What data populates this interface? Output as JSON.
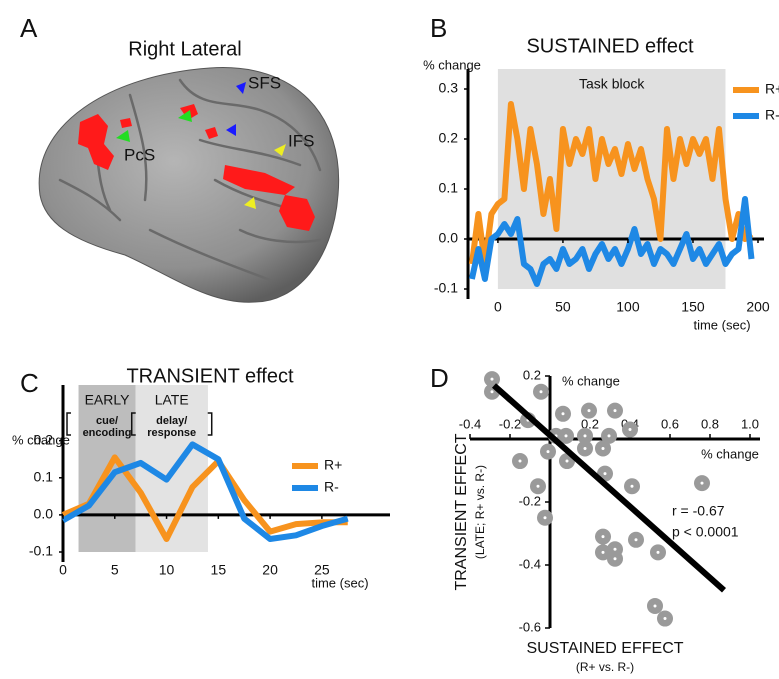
{
  "panel_a": {
    "panel": "A",
    "title": "Right Lateral",
    "labels": [
      "SFS",
      "IFS",
      "PcS"
    ]
  },
  "chart_data": [
    {
      "type": "line",
      "panel": "B",
      "title": "SUSTAINED effect",
      "y_label": "% change",
      "x_label": "time (sec)",
      "x": [
        -20,
        -15,
        -10,
        -5,
        0,
        5,
        10,
        15,
        20,
        25,
        30,
        35,
        40,
        45,
        50,
        55,
        60,
        65,
        70,
        75,
        80,
        85,
        90,
        95,
        100,
        105,
        110,
        115,
        120,
        125,
        130,
        135,
        140,
        145,
        150,
        155,
        160,
        165,
        170,
        175,
        180,
        185,
        190,
        195
      ],
      "series": [
        {
          "name": "R+",
          "color": "#f7931e",
          "values": [
            -0.05,
            0.05,
            -0.05,
            0.05,
            0.07,
            0.08,
            0.27,
            0.2,
            0.1,
            0.22,
            0.15,
            0.05,
            0.12,
            0.02,
            0.22,
            0.15,
            0.2,
            0.17,
            0.22,
            0.12,
            0.2,
            0.15,
            0.18,
            0.13,
            0.19,
            0.14,
            0.18,
            0.12,
            0.08,
            0.0,
            0.22,
            0.12,
            0.2,
            0.15,
            0.2,
            0.17,
            0.2,
            0.12,
            0.22,
            0.08,
            0.0,
            0.05,
            0.0,
            0.01
          ]
        },
        {
          "name": "R-",
          "color": "#1e88e5",
          "values": [
            -0.08,
            -0.02,
            -0.08,
            0.0,
            0.01,
            0.03,
            0.01,
            0.04,
            -0.05,
            -0.06,
            -0.09,
            -0.05,
            -0.04,
            -0.06,
            -0.02,
            -0.05,
            -0.04,
            -0.02,
            -0.06,
            -0.03,
            -0.01,
            -0.04,
            -0.02,
            -0.05,
            -0.02,
            0.02,
            -0.03,
            -0.01,
            -0.05,
            -0.02,
            -0.03,
            -0.05,
            -0.02,
            0.01,
            -0.04,
            -0.02,
            -0.05,
            -0.03,
            -0.01,
            -0.05,
            -0.03,
            -0.02,
            0.08,
            -0.04
          ]
        }
      ],
      "regions": [
        {
          "label": "Task block",
          "range": [
            0,
            175
          ],
          "color": "#e0e0e0"
        }
      ],
      "xlim": [
        -23,
        200
      ],
      "xticks": [
        0,
        50,
        100,
        150,
        200
      ],
      "ylim": [
        -0.1,
        0.34
      ],
      "yticks": [
        -0.1,
        {
          "value": 0,
          "label": "0.0"
        },
        0.1,
        0.2,
        0.3
      ],
      "legend": "right"
    },
    {
      "type": "line",
      "panel": "C",
      "title": "TRANSIENT effect",
      "y_label": "% change",
      "x_label": "time (sec)",
      "x": [
        0,
        2.5,
        5,
        7.5,
        10,
        12.5,
        15,
        17.5,
        20,
        22.5,
        25,
        27.5
      ],
      "series": [
        {
          "name": "R+",
          "color": "#f7931e",
          "values": [
            0.0,
            0.03,
            0.155,
            0.06,
            -0.065,
            0.075,
            0.145,
            0.04,
            -0.045,
            -0.025,
            -0.02,
            -0.02
          ]
        },
        {
          "name": "R-",
          "color": "#1e88e5",
          "values": [
            -0.015,
            0.025,
            0.115,
            0.14,
            0.095,
            0.19,
            0.15,
            -0.01,
            -0.065,
            -0.055,
            -0.03,
            -0.01
          ]
        }
      ],
      "regions": [
        {
          "label": "EARLY",
          "sublabel": [
            "cue/",
            "encoding"
          ],
          "range": [
            1.5,
            7
          ],
          "color": "#bdbdbd"
        },
        {
          "label": "LATE",
          "sublabel": [
            "delay/",
            "response"
          ],
          "range": [
            7,
            14
          ],
          "color": "#e3e3e3"
        }
      ],
      "xlim": [
        0,
        31
      ],
      "xticks": [
        0,
        5,
        10,
        15,
        20,
        25
      ],
      "ylim": [
        -0.1,
        0.35
      ],
      "yticks": [
        -0.1,
        {
          "value": 0,
          "label": "0.0"
        },
        0.1,
        0.2
      ],
      "legend": "center"
    },
    {
      "type": "scatter",
      "panel": "D",
      "color": "#9a9a9a",
      "y_label": "TRANSIENT EFFECT",
      "y_sublabel": "(LATE; R+ vs. R-)",
      "x_label": "SUSTAINED EFFECT",
      "x_sublabel": "(R+ vs. R-)",
      "x_unit": "% change",
      "y_unit": "% change",
      "annotations": [
        "r = -0.67",
        "p < 0.0001"
      ],
      "x": [
        -0.29,
        -0.29,
        -0.045,
        0.065,
        0.195,
        0.325,
        -0.11,
        0.03,
        0.08,
        0.175,
        0.295,
        0.4,
        -0.01,
        0.085,
        0.175,
        0.265,
        -0.15,
        0.275,
        0.41,
        -0.06,
        0.76,
        -0.025,
        0.265,
        0.325,
        0.265,
        0.325,
        0.43,
        0.54,
        0.525,
        0.575
      ],
      "values": [
        0.19,
        0.15,
        0.15,
        0.08,
        0.09,
        0.09,
        0.06,
        0.01,
        0.01,
        0.01,
        0.01,
        0.03,
        -0.04,
        -0.07,
        -0.03,
        -0.03,
        -0.07,
        -0.11,
        -0.15,
        -0.15,
        -0.14,
        -0.25,
        -0.31,
        -0.35,
        -0.36,
        -0.38,
        -0.32,
        -0.36,
        -0.53,
        -0.57
      ],
      "fit_line": {
        "x": [
          -0.28,
          0.87
        ],
        "y": [
          0.17,
          -0.48
        ]
      },
      "xlim": [
        -0.4,
        1.0
      ],
      "xticks": [
        -0.4,
        -0.2,
        0.2,
        0.4,
        0.6,
        0.8,
        {
          "value": 1,
          "label": "1.0"
        }
      ],
      "ylim": [
        -0.6,
        0.2
      ],
      "yticks": [
        -0.6,
        -0.4,
        -0.2,
        0.2
      ]
    }
  ]
}
